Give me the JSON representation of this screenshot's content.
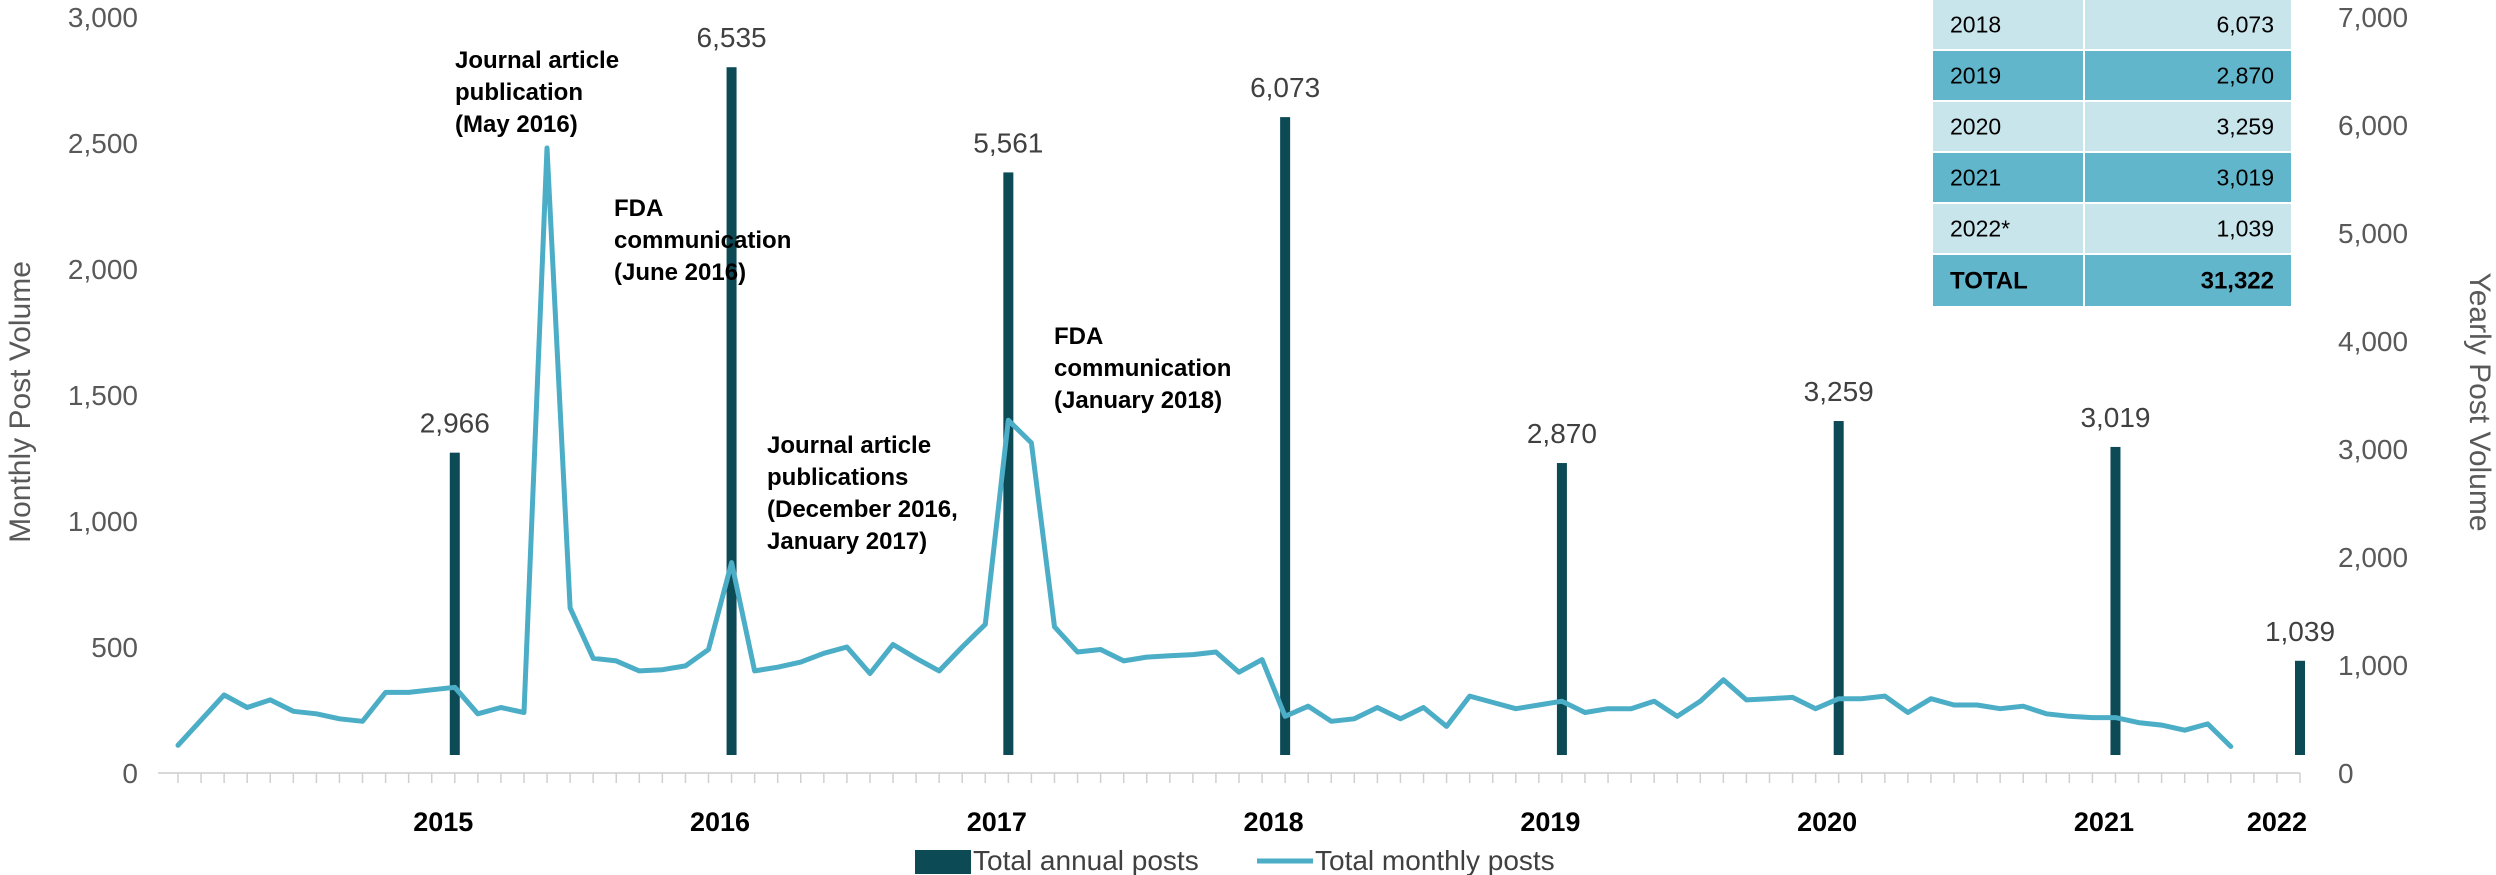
{
  "chart_data": {
    "type": "bar+line",
    "ylabel_left": "Monthly Post Volume",
    "ylabel_right": "Yearly Post Volume",
    "left_axis": {
      "ylim": [
        0,
        3000
      ],
      "ticks": [
        "0",
        "500",
        "1,000",
        "1,500",
        "2,000",
        "2,500",
        "3,000"
      ]
    },
    "right_axis": {
      "ylim": [
        0,
        7000
      ],
      "ticks": [
        "0",
        "1,000",
        "2,000",
        "3,000",
        "4,000",
        "5,000",
        "6,000",
        "7,000"
      ]
    },
    "x_start": "2014-07",
    "x_end": "2022-03",
    "year_labels": [
      "2015",
      "2016",
      "2017",
      "2018",
      "2019",
      "2020",
      "2021",
      "2022"
    ],
    "series": [
      {
        "name": "Total annual posts",
        "color": "#0c4a56",
        "axis": "right",
        "points": [
          {
            "x": "2015-07",
            "value": 2966,
            "label": "2,966"
          },
          {
            "x": "2016-07",
            "value": 6535,
            "label": "6,535"
          },
          {
            "x": "2017-07",
            "value": 5561,
            "label": "5,561"
          },
          {
            "x": "2018-07",
            "value": 6073,
            "label": "6,073"
          },
          {
            "x": "2019-07",
            "value": 2870,
            "label": "2,870"
          },
          {
            "x": "2020-07",
            "value": 3259,
            "label": "3,259"
          },
          {
            "x": "2021-07",
            "value": 3019,
            "label": "3,019"
          },
          {
            "x": "2022-03",
            "value": 1039,
            "label": "1,039"
          }
        ]
      },
      {
        "name": "Total monthly posts",
        "color": "#4badc6",
        "axis": "left",
        "points": [
          {
            "x": "2014-07",
            "value": 110
          },
          {
            "x": "2014-08",
            "value": 210
          },
          {
            "x": "2014-09",
            "value": 310
          },
          {
            "x": "2014-10",
            "value": 260
          },
          {
            "x": "2014-11",
            "value": 290
          },
          {
            "x": "2014-12",
            "value": 245
          },
          {
            "x": "2015-01",
            "value": 235
          },
          {
            "x": "2015-02",
            "value": 215
          },
          {
            "x": "2015-03",
            "value": 205
          },
          {
            "x": "2015-04",
            "value": 320
          },
          {
            "x": "2015-05",
            "value": 320
          },
          {
            "x": "2015-06",
            "value": 330
          },
          {
            "x": "2015-07",
            "value": 340
          },
          {
            "x": "2015-08",
            "value": 235
          },
          {
            "x": "2015-09",
            "value": 260
          },
          {
            "x": "2015-10",
            "value": 240
          },
          {
            "x": "2015-11",
            "value": 2480
          },
          {
            "x": "2015-12",
            "value": 655
          },
          {
            "x": "2016-01",
            "value": 455
          },
          {
            "x": "2016-02",
            "value": 445
          },
          {
            "x": "2016-03",
            "value": 405
          },
          {
            "x": "2016-04",
            "value": 410
          },
          {
            "x": "2016-05",
            "value": 425
          },
          {
            "x": "2016-06",
            "value": 490
          },
          {
            "x": "2016-07",
            "value": 835
          },
          {
            "x": "2016-08",
            "value": 405
          },
          {
            "x": "2016-09",
            "value": 420
          },
          {
            "x": "2016-10",
            "value": 440
          },
          {
            "x": "2016-11",
            "value": 475
          },
          {
            "x": "2016-12",
            "value": 500
          },
          {
            "x": "2017-01",
            "value": 395
          },
          {
            "x": "2017-02",
            "value": 510
          },
          {
            "x": "2017-03",
            "value": 455
          },
          {
            "x": "2017-04",
            "value": 405
          },
          {
            "x": "2017-05",
            "value": 500
          },
          {
            "x": "2017-06",
            "value": 590
          },
          {
            "x": "2017-07",
            "value": 1400
          },
          {
            "x": "2017-08",
            "value": 1310
          },
          {
            "x": "2017-09",
            "value": 580
          },
          {
            "x": "2017-10",
            "value": 480
          },
          {
            "x": "2017-11",
            "value": 490
          },
          {
            "x": "2017-12",
            "value": 445
          },
          {
            "x": "2018-01",
            "value": 460
          },
          {
            "x": "2018-02",
            "value": 465
          },
          {
            "x": "2018-03",
            "value": 470
          },
          {
            "x": "2018-04",
            "value": 480
          },
          {
            "x": "2018-05",
            "value": 400
          },
          {
            "x": "2018-06",
            "value": 450
          },
          {
            "x": "2018-07",
            "value": 225
          },
          {
            "x": "2018-08",
            "value": 265
          },
          {
            "x": "2018-09",
            "value": 205
          },
          {
            "x": "2018-10",
            "value": 215
          },
          {
            "x": "2018-11",
            "value": 260
          },
          {
            "x": "2018-12",
            "value": 215
          },
          {
            "x": "2019-01",
            "value": 260
          },
          {
            "x": "2019-02",
            "value": 185
          },
          {
            "x": "2019-03",
            "value": 305
          },
          {
            "x": "2019-04",
            "value": 280
          },
          {
            "x": "2019-05",
            "value": 255
          },
          {
            "x": "2019-06",
            "value": 270
          },
          {
            "x": "2019-07",
            "value": 285
          },
          {
            "x": "2019-08",
            "value": 240
          },
          {
            "x": "2019-09",
            "value": 255
          },
          {
            "x": "2019-10",
            "value": 255
          },
          {
            "x": "2019-11",
            "value": 285
          },
          {
            "x": "2019-12",
            "value": 225
          },
          {
            "x": "2020-01",
            "value": 285
          },
          {
            "x": "2020-02",
            "value": 370
          },
          {
            "x": "2020-03",
            "value": 290
          },
          {
            "x": "2020-04",
            "value": 295
          },
          {
            "x": "2020-05",
            "value": 300
          },
          {
            "x": "2020-06",
            "value": 255
          },
          {
            "x": "2020-07",
            "value": 295
          },
          {
            "x": "2020-08",
            "value": 295
          },
          {
            "x": "2020-09",
            "value": 305
          },
          {
            "x": "2020-10",
            "value": 240
          },
          {
            "x": "2020-11",
            "value": 295
          },
          {
            "x": "2020-12",
            "value": 270
          },
          {
            "x": "2021-01",
            "value": 270
          },
          {
            "x": "2021-02",
            "value": 255
          },
          {
            "x": "2021-03",
            "value": 265
          },
          {
            "x": "2021-04",
            "value": 235
          },
          {
            "x": "2021-05",
            "value": 225
          },
          {
            "x": "2021-06",
            "value": 220
          },
          {
            "x": "2021-07",
            "value": 220
          },
          {
            "x": "2021-08",
            "value": 200
          },
          {
            "x": "2021-09",
            "value": 190
          },
          {
            "x": "2021-10",
            "value": 170
          },
          {
            "x": "2021-11",
            "value": 195
          },
          {
            "x": "2021-12",
            "value": 105
          }
        ]
      }
    ],
    "annotations": [
      {
        "lines": [
          "Journal article",
          "publication",
          "(May 2016)"
        ]
      },
      {
        "lines": [
          "FDA",
          "communication",
          "(June 2016)"
        ]
      },
      {
        "lines": [
          "Journal article",
          "publications",
          "(December 2016,",
          "January 2017)"
        ]
      },
      {
        "lines": [
          "FDA",
          "communication",
          "(January 2018)"
        ]
      }
    ],
    "legend": {
      "position": "bottom-center"
    },
    "table": {
      "rows": [
        {
          "year": "2018",
          "value": "6,073"
        },
        {
          "year": "2019",
          "value": "2,870"
        },
        {
          "year": "2020",
          "value": "3,259"
        },
        {
          "year": "2021",
          "value": "3,019"
        },
        {
          "year": "2022*",
          "value": "1,039"
        }
      ],
      "total": {
        "label": "TOTAL",
        "value": "31,322"
      }
    }
  }
}
